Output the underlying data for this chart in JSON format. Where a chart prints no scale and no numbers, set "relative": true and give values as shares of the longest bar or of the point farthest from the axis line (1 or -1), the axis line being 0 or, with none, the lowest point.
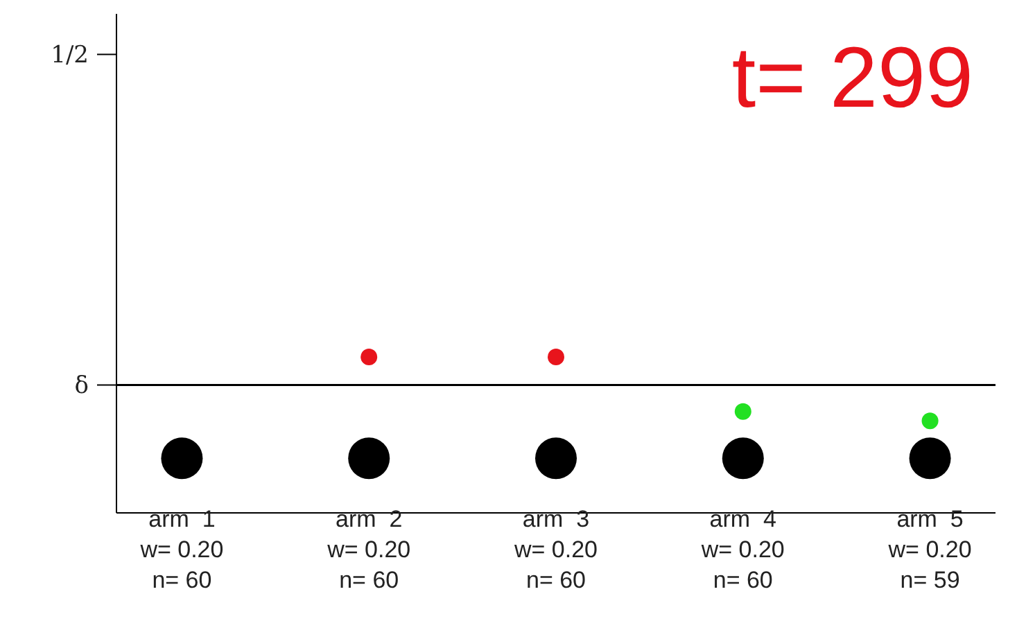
{
  "chart_data": {
    "type": "scatter",
    "relative": true,
    "categories": [
      "arm  1\nw= 0.20\nn= 60",
      "arm  2\nw= 0.20\nn= 60",
      "arm  3\nw= 0.20\nn= 60",
      "arm  4\nw= 0.20\nn= 60",
      "arm  5\nw= 0.20\nn= 59"
    ],
    "series": [
      {
        "color": "#000000",
        "values": [
          0.35,
          0.35,
          0.35,
          0.35,
          0.35
        ]
      },
      {
        "color": "#e8141c",
        "values": [
          null,
          1,
          1,
          null,
          null
        ]
      },
      {
        "color": "#22e022",
        "values": [
          null,
          null,
          null,
          0.65,
          0.59
        ]
      }
    ],
    "ref_lines": [
      {
        "axis": "y",
        "value": 0.82,
        "label": "δ",
        "color": "#000000"
      }
    ],
    "annotations": [
      "1/2",
      "t= 299"
    ],
    "grid": false,
    "marker": "circle"
  }
}
